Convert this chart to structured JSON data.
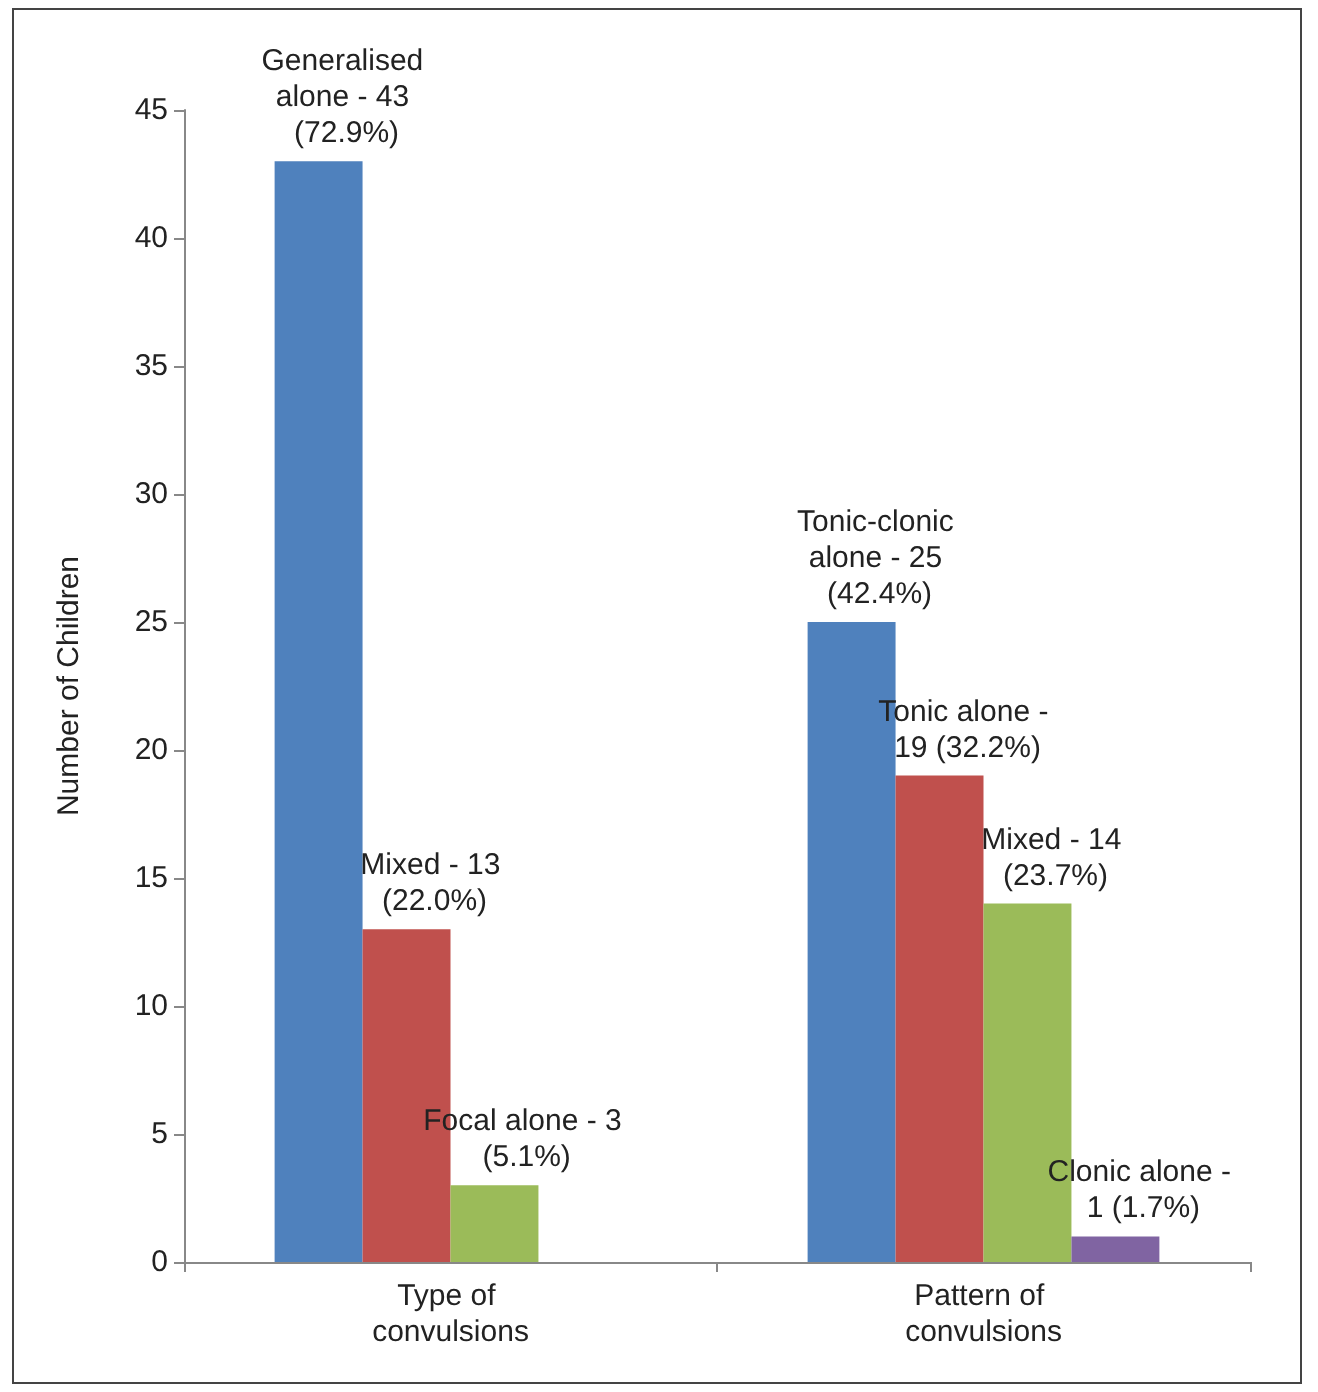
{
  "chart_data": {
    "type": "bar",
    "ylabel": "Number of Children",
    "categories": [
      "Type of convulsions",
      "Pattern of convulsions"
    ],
    "series": [
      {
        "color": "#4f81bd",
        "values": [
          43,
          25
        ]
      },
      {
        "color": "#c0504d",
        "values": [
          13,
          19
        ]
      },
      {
        "color": "#9bbb59",
        "values": [
          3,
          14
        ]
      },
      {
        "color": "#8064a2",
        "values": [
          null,
          1
        ]
      }
    ],
    "annotations": [
      "Generalised alone - 43 (72.9%)",
      "Mixed - 13 (22.0%)",
      "Focal alone - 3 (5.1%)",
      "Tonic-clonic alone - 25 (42.4%)",
      "Tonic alone - 19 (32.2%)",
      "Mixed - 14 (23.7%)",
      "Clonic alone - 1 (1.7%)"
    ],
    "ylim": [
      0,
      45
    ],
    "yticks": [
      0,
      5,
      10,
      15,
      20,
      25,
      30,
      35,
      40,
      45
    ],
    "grid": false
  }
}
